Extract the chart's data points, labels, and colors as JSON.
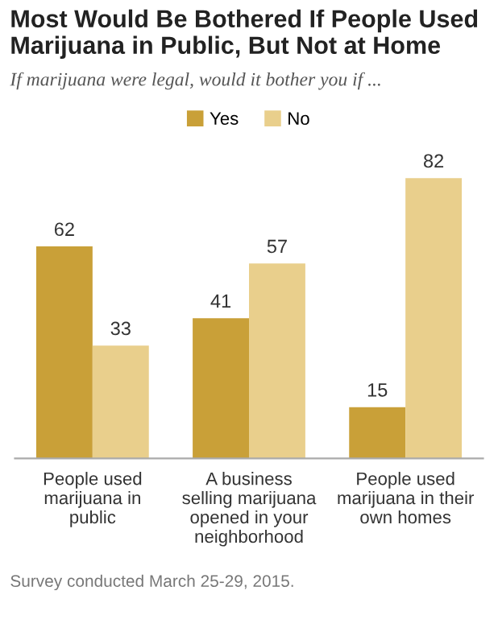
{
  "chart_data": {
    "type": "bar",
    "title": "Most Would Be Bothered If People Used\nMarijuana in Public, But Not at Home",
    "subtitle": "If marijuana were legal, would it bother you if ...",
    "categories": [
      "People used\nmarijuana in\npublic",
      "A business\nselling marijuana\nopened in your\nneighborhood",
      "People used\nmarijuana in their\nown homes"
    ],
    "series": [
      {
        "name": "Yes",
        "color": "#c9a038",
        "values": [
          62,
          41,
          15
        ]
      },
      {
        "name": "No",
        "color": "#e9cf8c",
        "values": [
          33,
          57,
          82
        ]
      }
    ],
    "data_labels": true,
    "legend": "top",
    "grid": false,
    "annotations": [
      "Survey conducted March 25-29, 2015."
    ]
  }
}
